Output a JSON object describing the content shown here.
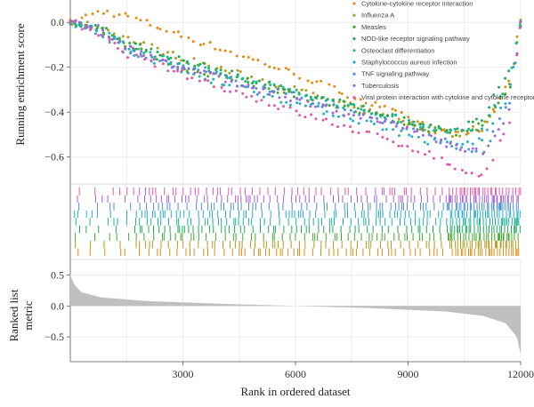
{
  "chart_data": {
    "type": "scatter",
    "kind": "GSEA multi-pathway enrichment plot",
    "x_axis": {
      "label": "Rank in ordered dataset",
      "ticks": [
        3000,
        6000,
        9000,
        12000
      ],
      "tick_labels": [
        "3000",
        "6000",
        "9000",
        "12000"
      ],
      "range": [
        0,
        12000
      ]
    },
    "panels": {
      "es": {
        "ylabel": "Running enrichment score",
        "ylim": [
          -0.72,
          0.1
        ],
        "yticks": [
          0.0,
          -0.2,
          -0.4,
          -0.6
        ],
        "ytick_labels": [
          "0.0",
          "−0.2",
          "−0.4",
          "−0.6"
        ],
        "grid": true
      },
      "ranked": {
        "ylabel_lines": [
          "Ranked list",
          "metric"
        ],
        "ylim": [
          -0.9,
          0.75
        ],
        "yticks": [
          0.5,
          0.0,
          -0.5
        ],
        "ytick_labels": [
          "0.5",
          "0.0",
          "−0.5"
        ],
        "fill_color": "#bfbfbf",
        "grid": true
      }
    },
    "legend_position": "top-right",
    "series": [
      {
        "name": "Cytokine-cytokine receptor interaction",
        "color": "#e08c14",
        "es_curve": [
          [
            0,
            0.0
          ],
          [
            800,
            0.05
          ],
          [
            1500,
            0.03
          ],
          [
            3000,
            -0.06
          ],
          [
            6000,
            -0.23
          ],
          [
            8000,
            -0.36
          ],
          [
            9500,
            -0.46
          ],
          [
            10300,
            -0.5
          ],
          [
            11000,
            -0.48
          ],
          [
            11700,
            -0.25
          ],
          [
            12000,
            0.0
          ]
        ]
      },
      {
        "name": "Influenza A",
        "color": "#b39a1c",
        "es_curve": [
          [
            0,
            0.0
          ],
          [
            800,
            -0.02
          ],
          [
            1500,
            -0.07
          ],
          [
            3000,
            -0.16
          ],
          [
            6000,
            -0.3
          ],
          [
            8000,
            -0.4
          ],
          [
            9500,
            -0.48
          ],
          [
            10300,
            -0.5
          ],
          [
            11000,
            -0.46
          ],
          [
            11700,
            -0.28
          ],
          [
            12000,
            0.0
          ]
        ]
      },
      {
        "name": "Measles",
        "color": "#43a72c",
        "es_curve": [
          [
            0,
            0.0
          ],
          [
            800,
            -0.03
          ],
          [
            1500,
            -0.1
          ],
          [
            3000,
            -0.2
          ],
          [
            6000,
            -0.32
          ],
          [
            8000,
            -0.41
          ],
          [
            9500,
            -0.47
          ],
          [
            10300,
            -0.5
          ],
          [
            11000,
            -0.45
          ],
          [
            11700,
            -0.3
          ],
          [
            12000,
            0.0
          ]
        ]
      },
      {
        "name": "NOD-like receptor signaling pathway",
        "color": "#1faa5a",
        "es_curve": [
          [
            0,
            0.0
          ],
          [
            800,
            -0.02
          ],
          [
            1500,
            -0.09
          ],
          [
            3000,
            -0.17
          ],
          [
            6000,
            -0.31
          ],
          [
            8000,
            -0.39
          ],
          [
            9500,
            -0.46
          ],
          [
            10300,
            -0.48
          ],
          [
            11000,
            -0.43
          ],
          [
            11700,
            -0.2
          ],
          [
            12000,
            -0.02
          ]
        ]
      },
      {
        "name": "Osteoclast differentiation",
        "color": "#1fb59b",
        "es_curve": [
          [
            0,
            0.0
          ],
          [
            800,
            -0.03
          ],
          [
            1500,
            -0.1
          ],
          [
            3000,
            -0.19
          ],
          [
            6000,
            -0.31
          ],
          [
            8000,
            -0.4
          ],
          [
            9500,
            -0.46
          ],
          [
            10300,
            -0.49
          ],
          [
            11000,
            -0.47
          ],
          [
            11700,
            -0.26
          ],
          [
            12000,
            0.0
          ]
        ]
      },
      {
        "name": "Staphylococcus aureus infection",
        "color": "#26aec9",
        "es_curve": [
          [
            0,
            0.0
          ],
          [
            800,
            -0.04
          ],
          [
            1500,
            -0.12
          ],
          [
            3000,
            -0.22
          ],
          [
            6000,
            -0.36
          ],
          [
            8000,
            -0.45
          ],
          [
            9500,
            -0.53
          ],
          [
            10300,
            -0.55
          ],
          [
            11000,
            -0.52
          ],
          [
            11700,
            -0.32
          ],
          [
            12000,
            0.0
          ]
        ]
      },
      {
        "name": "TNF signaling pathway",
        "color": "#4f8fd6",
        "es_curve": [
          [
            0,
            0.0
          ],
          [
            800,
            -0.05
          ],
          [
            1500,
            -0.13
          ],
          [
            3000,
            -0.2
          ],
          [
            6000,
            -0.33
          ],
          [
            8000,
            -0.42
          ],
          [
            9500,
            -0.5
          ],
          [
            10300,
            -0.55
          ],
          [
            11000,
            -0.58
          ],
          [
            11700,
            -0.36
          ],
          [
            12000,
            0.0
          ]
        ]
      },
      {
        "name": "Tuberculosis",
        "color": "#a466d6",
        "es_curve": [
          [
            0,
            0.0
          ],
          [
            800,
            -0.03
          ],
          [
            1500,
            -0.11
          ],
          [
            3000,
            -0.2
          ],
          [
            6000,
            -0.35
          ],
          [
            8000,
            -0.43
          ],
          [
            9500,
            -0.5
          ],
          [
            10300,
            -0.56
          ],
          [
            11000,
            -0.58
          ],
          [
            11700,
            -0.4
          ],
          [
            12000,
            0.0
          ]
        ]
      },
      {
        "name": "Viral protein interaction with cytokine and cytokine receptor",
        "color": "#e257a8",
        "es_curve": [
          [
            0,
            0.0
          ],
          [
            800,
            -0.06
          ],
          [
            1500,
            -0.14
          ],
          [
            3000,
            -0.23
          ],
          [
            6000,
            -0.4
          ],
          [
            8000,
            -0.5
          ],
          [
            9500,
            -0.58
          ],
          [
            10300,
            -0.65
          ],
          [
            11000,
            -0.69
          ],
          [
            11700,
            -0.45
          ],
          [
            12000,
            0.0
          ]
        ]
      }
    ],
    "ranked_metric_curve": [
      [
        0,
        0.5
      ],
      [
        100,
        0.35
      ],
      [
        300,
        0.22
      ],
      [
        800,
        0.14
      ],
      [
        2000,
        0.08
      ],
      [
        4000,
        0.035
      ],
      [
        6000,
        0.0
      ],
      [
        8000,
        -0.035
      ],
      [
        10000,
        -0.09
      ],
      [
        11000,
        -0.16
      ],
      [
        11600,
        -0.28
      ],
      [
        11900,
        -0.5
      ],
      [
        12000,
        -0.78
      ]
    ]
  }
}
